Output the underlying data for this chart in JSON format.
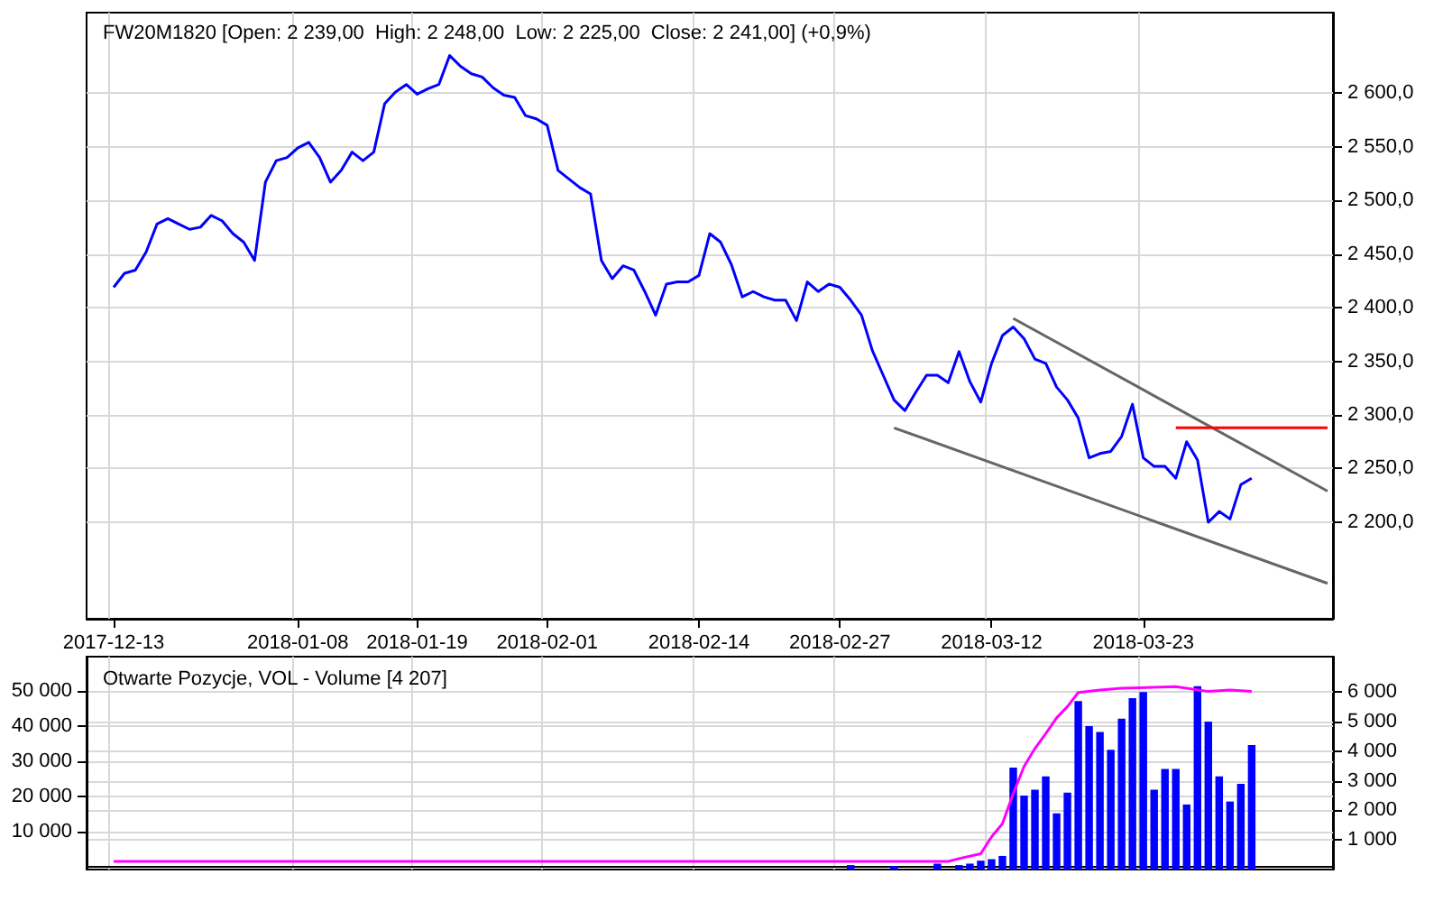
{
  "chart_data": [
    {
      "type": "line",
      "title": "FW20M1820 [Open: 2 239,00  High: 2 248,00  Low: 2 225,00  Close: 2 241,00] (+0,9%)",
      "categories": [
        null,
        null,
        "2017-12-13",
        null,
        null,
        null,
        null,
        null,
        null,
        null,
        null,
        null,
        null,
        null,
        null,
        null,
        null,
        null,
        null,
        "2018-01-08",
        null,
        null,
        null,
        null,
        null,
        null,
        null,
        null,
        null,
        null,
        "2018-01-19",
        null,
        null,
        null,
        null,
        null,
        null,
        null,
        null,
        null,
        null,
        null,
        "2018-02-01",
        null,
        null,
        null,
        null,
        null,
        null,
        null,
        null,
        null,
        null,
        null,
        null,
        null,
        "2018-02-14",
        null,
        null,
        null,
        null,
        null,
        null,
        null,
        null,
        null,
        null,
        null,
        null,
        "2018-02-27",
        null,
        null,
        null,
        null,
        null,
        null,
        null,
        null,
        null,
        null,
        null,
        null,
        null,
        "2018-03-12",
        null,
        null,
        null,
        null,
        null,
        null,
        null,
        null,
        null,
        null,
        null,
        null,
        null,
        "2018-03-23",
        null,
        null,
        null,
        null,
        null,
        null,
        null,
        null,
        null,
        null,
        null,
        null,
        null,
        null,
        null,
        null,
        null
      ],
      "series": [
        {
          "color": "#0000ff",
          "values": [
            null,
            null,
            2419,
            2432,
            2435,
            2452,
            2478,
            2483,
            2478,
            2473,
            2475,
            2486,
            2481,
            2469,
            2461,
            2444,
            2517,
            2537,
            2540,
            2549,
            2554,
            2540,
            2517,
            2528,
            2545,
            2537,
            2545,
            2590,
            2601,
            2608,
            2599,
            2604,
            2608,
            2635,
            2625,
            2618,
            2615,
            2605,
            2598,
            2596,
            2579,
            2576,
            2570,
            2528,
            2520,
            2512,
            2506,
            2444,
            2427,
            2439,
            2435,
            2415,
            2393,
            2422,
            2424,
            2424,
            2430,
            2469,
            2461,
            2440,
            2410,
            2415,
            2410,
            2407,
            2407,
            2388,
            2424,
            2415,
            2422,
            2419,
            2407,
            2393,
            2360,
            2337,
            2314,
            2304,
            2321,
            2337,
            2337,
            2330,
            2359,
            2331,
            2312,
            2348,
            2374,
            2382,
            2371,
            2352,
            2348,
            2326,
            2314,
            2297,
            2260,
            2264,
            2266,
            2280,
            2310,
            2260,
            2252,
            2252,
            2241,
            2275,
            2258,
            2200,
            2210,
            2203,
            2235,
            2241,
            null,
            null,
            null,
            null,
            null,
            null,
            null
          ]
        },
        {
          "color": "#666666",
          "values": [
            null,
            null,
            null,
            null,
            null,
            null,
            null,
            null,
            null,
            null,
            null,
            null,
            null,
            null,
            null,
            null,
            null,
            null,
            null,
            null,
            null,
            null,
            null,
            null,
            null,
            null,
            null,
            null,
            null,
            null,
            null,
            null,
            null,
            null,
            null,
            null,
            null,
            null,
            null,
            null,
            null,
            null,
            null,
            null,
            null,
            null,
            null,
            null,
            null,
            null,
            null,
            null,
            null,
            null,
            null,
            null,
            null,
            null,
            null,
            null,
            null,
            null,
            null,
            null,
            null,
            null,
            null,
            null,
            null,
            null,
            null,
            null,
            null,
            null,
            null,
            null,
            null,
            null,
            null,
            null,
            null,
            null,
            null,
            null,
            null,
            2390,
            null,
            null,
            null,
            null,
            null,
            null,
            null,
            null,
            null,
            null,
            null,
            null,
            null,
            null,
            null,
            null,
            null,
            null,
            null,
            null,
            null,
            null,
            null,
            null,
            null,
            null,
            null,
            null,
            2229
          ]
        },
        {
          "color": "#666666",
          "values": [
            null,
            null,
            null,
            null,
            null,
            null,
            null,
            null,
            null,
            null,
            null,
            null,
            null,
            null,
            null,
            null,
            null,
            null,
            null,
            null,
            null,
            null,
            null,
            null,
            null,
            null,
            null,
            null,
            null,
            null,
            null,
            null,
            null,
            null,
            null,
            null,
            null,
            null,
            null,
            null,
            null,
            null,
            null,
            null,
            null,
            null,
            null,
            null,
            null,
            null,
            null,
            null,
            null,
            null,
            null,
            null,
            null,
            null,
            null,
            null,
            null,
            null,
            null,
            null,
            null,
            null,
            null,
            null,
            null,
            null,
            null,
            null,
            null,
            null,
            2288,
            null,
            null,
            null,
            null,
            null,
            null,
            null,
            null,
            null,
            null,
            null,
            null,
            null,
            null,
            null,
            null,
            null,
            null,
            null,
            null,
            null,
            null,
            null,
            null,
            null,
            null,
            null,
            null,
            null,
            null,
            null,
            null,
            null,
            null,
            null,
            null,
            null,
            null,
            null,
            2143
          ]
        },
        {
          "color": "#ff0000",
          "values": [
            null,
            null,
            null,
            null,
            null,
            null,
            null,
            null,
            null,
            null,
            null,
            null,
            null,
            null,
            null,
            null,
            null,
            null,
            null,
            null,
            null,
            null,
            null,
            null,
            null,
            null,
            null,
            null,
            null,
            null,
            null,
            null,
            null,
            null,
            null,
            null,
            null,
            null,
            null,
            null,
            null,
            null,
            null,
            null,
            null,
            null,
            null,
            null,
            null,
            null,
            null,
            null,
            null,
            null,
            null,
            null,
            null,
            null,
            null,
            null,
            null,
            null,
            null,
            null,
            null,
            null,
            null,
            null,
            null,
            null,
            null,
            null,
            null,
            null,
            null,
            null,
            null,
            null,
            null,
            null,
            null,
            null,
            null,
            null,
            null,
            null,
            null,
            null,
            null,
            null,
            null,
            null,
            null,
            null,
            null,
            null,
            null,
            null,
            null,
            null,
            2288,
            2288,
            2288,
            2288,
            2288,
            2288,
            2288,
            2288,
            2288,
            2288,
            2288,
            2288,
            2288,
            2288,
            2288
          ]
        }
      ],
      "ylim": [
        2110,
        2675
      ],
      "yticks": [
        {
          "value": 2200,
          "label": "2 200,0"
        },
        {
          "value": 2250,
          "label": "2 250,0"
        },
        {
          "value": 2300,
          "label": "2 300,0"
        },
        {
          "value": 2350,
          "label": "2 350,0"
        },
        {
          "value": 2400,
          "label": "2 400,0"
        },
        {
          "value": 2450,
          "label": "2 450,0"
        },
        {
          "value": 2500,
          "label": "2 500,0"
        },
        {
          "value": 2550,
          "label": "2 550,0"
        },
        {
          "value": 2600,
          "label": "2 600,0"
        }
      ],
      "grid": true,
      "marker": "none"
    },
    {
      "type": "bar",
      "title": "Otwarte Pozycje, VOL - Volume [4 207]",
      "categories": [
        null,
        null,
        "2017-12-13",
        null,
        null,
        null,
        null,
        null,
        null,
        null,
        null,
        null,
        null,
        null,
        null,
        null,
        null,
        null,
        null,
        "2018-01-08",
        null,
        null,
        null,
        null,
        null,
        null,
        null,
        null,
        null,
        null,
        "2018-01-19",
        null,
        null,
        null,
        null,
        null,
        null,
        null,
        null,
        null,
        null,
        null,
        "2018-02-01",
        null,
        null,
        null,
        null,
        null,
        null,
        null,
        null,
        null,
        null,
        null,
        null,
        null,
        "2018-02-14",
        null,
        null,
        null,
        null,
        null,
        null,
        null,
        null,
        null,
        null,
        null,
        null,
        "2018-02-27",
        null,
        null,
        null,
        null,
        null,
        null,
        null,
        null,
        null,
        null,
        null,
        null,
        null,
        "2018-03-12",
        null,
        null,
        null,
        null,
        null,
        null,
        null,
        null,
        null,
        null,
        null,
        null,
        null,
        "2018-03-23",
        null,
        null,
        null,
        null,
        null,
        null,
        null,
        null,
        null,
        null,
        null,
        null,
        null,
        null,
        null,
        null,
        null
      ],
      "series": [
        {
          "color": "#0000ff",
          "axis": "y2",
          "values": [
            null,
            null,
            null,
            null,
            null,
            null,
            null,
            null,
            null,
            null,
            null,
            null,
            null,
            null,
            null,
            null,
            null,
            null,
            null,
            null,
            null,
            null,
            null,
            null,
            null,
            null,
            null,
            null,
            null,
            null,
            null,
            null,
            null,
            null,
            null,
            null,
            null,
            null,
            null,
            null,
            null,
            null,
            null,
            null,
            null,
            null,
            null,
            null,
            null,
            null,
            null,
            null,
            null,
            null,
            null,
            null,
            null,
            null,
            null,
            null,
            null,
            null,
            null,
            null,
            null,
            null,
            null,
            null,
            null,
            null,
            150,
            null,
            null,
            null,
            120,
            null,
            null,
            null,
            200,
            null,
            150,
            200,
            300,
            350,
            460,
            3450,
            2500,
            2700,
            3150,
            1900,
            2600,
            5700,
            4850,
            4650,
            4050,
            5100,
            5800,
            6000,
            2700,
            3400,
            3400,
            2200,
            6200,
            5000,
            3150,
            2300,
            2900,
            4207,
            null,
            null,
            null,
            null,
            null,
            null,
            null
          ]
        },
        {
          "type": "line",
          "color": "#ff00ff",
          "values": [
            null,
            null,
            1500,
            null,
            null,
            null,
            null,
            null,
            null,
            null,
            null,
            null,
            null,
            null,
            null,
            null,
            null,
            null,
            null,
            null,
            null,
            null,
            null,
            null,
            null,
            null,
            null,
            null,
            null,
            null,
            null,
            null,
            null,
            null,
            null,
            null,
            null,
            null,
            null,
            null,
            null,
            null,
            null,
            null,
            null,
            null,
            null,
            null,
            null,
            null,
            null,
            null,
            null,
            null,
            null,
            null,
            null,
            null,
            null,
            null,
            null,
            null,
            null,
            null,
            null,
            null,
            null,
            null,
            null,
            null,
            null,
            null,
            null,
            null,
            null,
            null,
            null,
            null,
            null,
            1500,
            2300,
            null,
            3700,
            8500,
            12200,
            20800,
            28500,
            33600,
            37800,
            42300,
            45500,
            49500,
            null,
            50200,
            null,
            50700,
            null,
            null,
            null,
            null,
            51200,
            null,
            null,
            49800,
            null,
            50200,
            null,
            49800,
            null,
            null,
            null,
            null,
            null,
            null,
            null
          ]
        }
      ],
      "ylim": [
        -800,
        59700
      ],
      "yticks": [
        {
          "value": 10000,
          "label": "10 000"
        },
        {
          "value": 20000,
          "label": "20 000"
        },
        {
          "value": 30000,
          "label": "30 000"
        },
        {
          "value": 40000,
          "label": "40 000"
        },
        {
          "value": 50000,
          "label": "50 000"
        }
      ],
      "y2lim": [
        0,
        7200
      ],
      "y2ticks": [
        {
          "value": 1000,
          "label": "1 000"
        },
        {
          "value": 2000,
          "label": "2 000"
        },
        {
          "value": 3000,
          "label": "3 000"
        },
        {
          "value": 4000,
          "label": "4 000"
        },
        {
          "value": 5000,
          "label": "5 000"
        },
        {
          "value": 6000,
          "label": "6 000"
        }
      ],
      "grid": true,
      "marker": "none",
      "tick_labels": "y"
    }
  ]
}
